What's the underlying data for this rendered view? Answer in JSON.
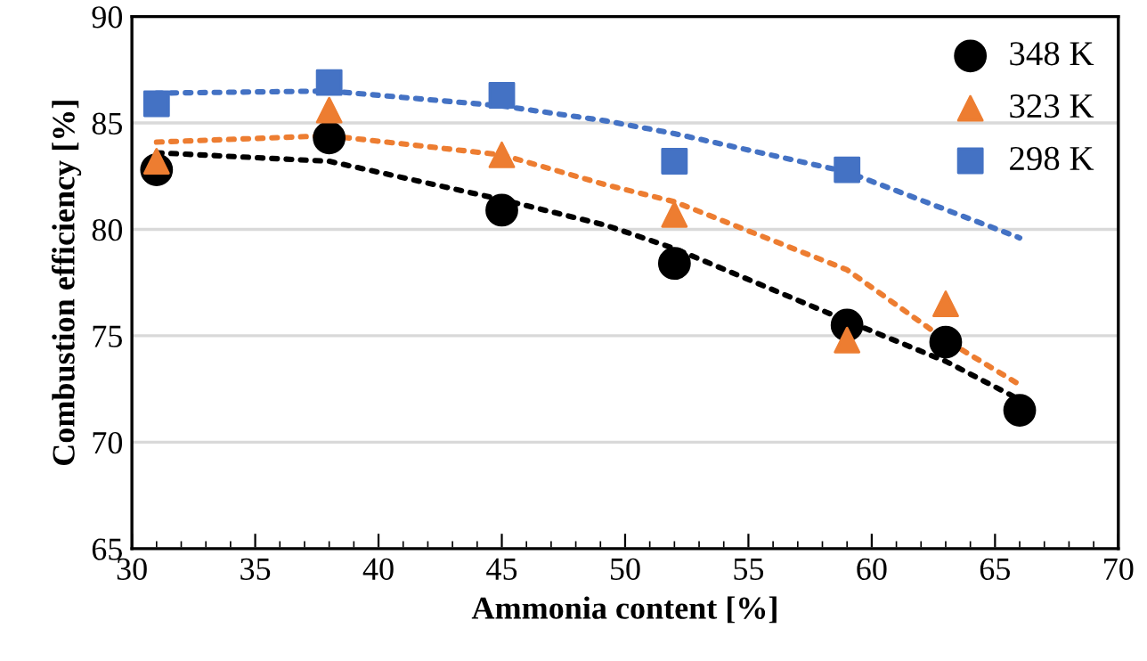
{
  "chart_data": {
    "type": "scatter",
    "xlabel": "Ammonia content [%]",
    "ylabel": "Combustion efficiency [%]",
    "xlim": [
      30,
      70
    ],
    "xticks": [
      30,
      35,
      40,
      45,
      50,
      55,
      60,
      65,
      70
    ],
    "ylim": [
      65,
      90
    ],
    "yticks": [
      65,
      70,
      75,
      80,
      85,
      90
    ],
    "grid": "y",
    "legend": "top right",
    "series": [
      {
        "name": "348 K",
        "color": "#000000",
        "marker": "circle",
        "x": [
          31,
          38,
          45,
          52,
          59,
          63,
          66
        ],
        "values": [
          82.8,
          84.3,
          80.9,
          78.4,
          75.5,
          74.7,
          71.5
        ]
      },
      {
        "name": "323 K",
        "color": "#ed7d31",
        "marker": "triangle",
        "x": [
          31,
          38,
          45,
          52,
          59,
          63
        ],
        "values": [
          83.2,
          85.6,
          83.5,
          80.7,
          74.8,
          76.5
        ]
      },
      {
        "name": "298 K",
        "color": "#4472c4",
        "marker": "square",
        "x": [
          31,
          38,
          45,
          52,
          59
        ],
        "values": [
          85.9,
          86.9,
          86.3,
          83.2,
          82.8
        ]
      },
      {
        "type": "line",
        "line_style": "dotted",
        "marker": "none",
        "color": "#000000",
        "x": [
          31,
          38,
          45,
          49.2,
          52,
          59,
          63,
          66
        ],
        "values": [
          83.6,
          83.2,
          81.4,
          80.2,
          79.1,
          75.7,
          73.8,
          72.0
        ]
      },
      {
        "type": "line",
        "line_style": "dotted",
        "marker": "none",
        "color": "#ed7d31",
        "x": [
          31,
          38,
          45,
          49.2,
          52,
          59,
          63,
          66
        ],
        "values": [
          84.1,
          84.4,
          83.5,
          82.1,
          81.3,
          78.1,
          74.8,
          72.7
        ]
      },
      {
        "type": "line",
        "line_style": "dotted",
        "marker": "none",
        "color": "#4472c4",
        "x": [
          31,
          38,
          45,
          49.2,
          52,
          59,
          66
        ],
        "values": [
          86.4,
          86.5,
          85.8,
          85.1,
          84.5,
          82.7,
          79.6
        ]
      }
    ]
  }
}
